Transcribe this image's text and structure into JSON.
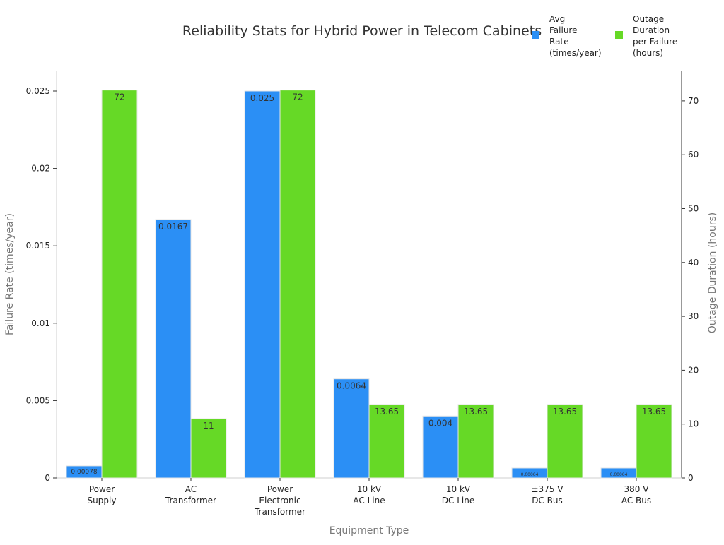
{
  "chart_data": {
    "type": "bar",
    "title": "Reliability Stats for Hybrid Power in Telecom Cabinets",
    "xlabel": "Equipment Type",
    "ylabel_left": "Failure Rate (times/year)",
    "ylabel_right": "Outage Duration (hours)",
    "categories": [
      [
        "Power",
        "Supply"
      ],
      [
        "AC",
        "Transformer"
      ],
      [
        "Power",
        "Electronic",
        "Transformer"
      ],
      [
        "10 kV",
        "AC Line"
      ],
      [
        "10 kV",
        "DC Line"
      ],
      [
        "±375 V",
        "DC Bus"
      ],
      [
        "380 V",
        "AC Bus"
      ]
    ],
    "series": [
      {
        "name": [
          "Avg",
          "Failure",
          "Rate",
          "(times/year)"
        ],
        "axis": "left",
        "color": "#2b8ff5",
        "values": [
          0.00078,
          0.0167,
          0.025,
          0.0064,
          0.004,
          0.00064,
          0.00064
        ],
        "labels": [
          "0.00078",
          "0.0167",
          "0.025",
          "0.0064",
          "0.004",
          "0.00064",
          "0.00064"
        ]
      },
      {
        "name": [
          "Outage",
          "Duration",
          "per Failure",
          "(hours)"
        ],
        "axis": "right",
        "color": "#66d926",
        "values": [
          72,
          11,
          72,
          13.65,
          13.65,
          13.65,
          13.65
        ],
        "labels": [
          "72",
          "11",
          "72",
          "13.65",
          "13.65",
          "13.65",
          "13.65"
        ]
      }
    ],
    "ylim_left": [
      0,
      0.025
    ],
    "yticks_left": [
      "0",
      "0.005",
      "0.01",
      "0.015",
      "0.02",
      "0.025"
    ],
    "ylim_right": [
      0,
      72
    ],
    "yticks_right": [
      "0",
      "10",
      "20",
      "30",
      "40",
      "50",
      "60",
      "70"
    ],
    "grid": false,
    "legend_position": "top-right"
  }
}
